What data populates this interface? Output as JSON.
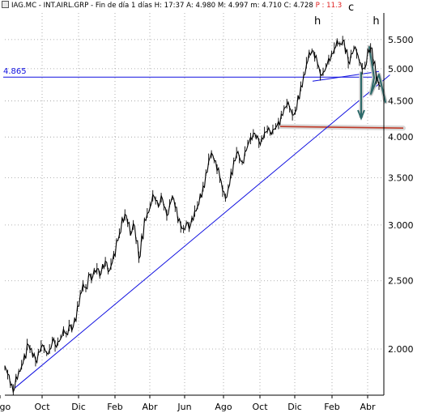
{
  "header": {
    "symbol": "IAG.MC - INT.AIRL.GRP",
    "period": "Fin de día 1 días",
    "high": "H: 17:37",
    "open": "A: 4.980",
    "max": "M: 4.997",
    "min": "m: 4.710",
    "close": "C: 4.728",
    "pchange": "P : 11.3"
  },
  "chart_data": {
    "type": "line",
    "title": "IAG.MC - INT.AIRL.GRP",
    "xlabel": "",
    "ylabel": "",
    "ylim": [
      1.72,
      6.0
    ],
    "log_scale": true,
    "grid": true,
    "x_tick_labels": [
      "Ago",
      "Oct",
      "Dic",
      "Feb",
      "Abr",
      "Jun",
      "Ago",
      "Oct",
      "Dic",
      "Feb",
      "Abr"
    ],
    "y_tick_labels": [
      "5.500",
      "5.000",
      "4.500",
      "4.000",
      "3.500",
      "3.000",
      "2.500",
      "2.000"
    ],
    "y_tick_values": [
      5.5,
      5.0,
      4.5,
      4.0,
      3.5,
      3.0,
      2.5,
      2.0
    ],
    "series": [
      {
        "values": [
          1.88,
          1.84,
          1.78,
          1.75,
          1.82,
          1.86,
          1.9,
          1.95,
          2.03,
          2.0,
          1.96,
          1.92,
          1.98,
          2.02,
          2.0,
          1.97,
          2.0,
          2.06,
          2.02,
          2.05,
          2.08,
          2.12,
          2.1,
          2.16,
          2.14,
          2.2,
          2.3,
          2.4,
          2.46,
          2.44,
          2.55,
          2.52,
          2.58,
          2.6,
          2.55,
          2.62,
          2.66,
          2.58,
          2.64,
          2.72,
          2.85,
          2.92,
          3.05,
          3.1,
          3.02,
          2.92,
          3.0,
          2.85,
          2.7,
          2.88,
          3.05,
          3.12,
          3.2,
          3.3,
          3.25,
          3.2,
          3.28,
          3.18,
          3.1,
          3.22,
          3.28,
          3.18,
          3.05,
          2.98,
          2.96,
          3.02,
          2.98,
          3.06,
          3.14,
          3.2,
          3.3,
          3.4,
          3.56,
          3.72,
          3.78,
          3.7,
          3.6,
          3.48,
          3.35,
          3.28,
          3.4,
          3.55,
          3.7,
          3.8,
          3.72,
          3.68,
          3.82,
          3.92,
          3.98,
          4.05,
          4.0,
          3.92,
          3.98,
          4.06,
          4.1,
          4.05,
          4.1,
          4.14,
          4.18,
          4.3,
          4.4,
          4.46,
          4.38,
          4.3,
          4.36,
          4.55,
          4.72,
          4.9,
          5.1,
          5.25,
          5.3,
          5.2,
          5.05,
          4.9,
          4.95,
          5.05,
          5.15,
          5.25,
          5.35,
          5.45,
          5.42,
          5.48,
          5.3,
          5.1,
          5.25,
          5.35,
          5.25,
          5.1,
          5.0,
          5.05,
          5.3,
          5.35,
          5.1,
          4.85,
          4.728
        ]
      }
    ],
    "annotations": [
      {
        "type": "text",
        "text": "h",
        "x_index": 112,
        "y": 5.78
      },
      {
        "type": "text",
        "text": "c",
        "x_index": 124,
        "y": 6.05
      },
      {
        "type": "text",
        "text": "h",
        "x_index": 133,
        "y": 5.78
      },
      {
        "type": "hline",
        "label": "4.865",
        "y": 4.865,
        "color": "#1010e0"
      },
      {
        "type": "hline",
        "y": 4.14,
        "color": "#c03a28"
      },
      {
        "type": "trendline",
        "from": [
          1.76,
          0
        ],
        "to": [
          4.9,
          135
        ],
        "color": "#1010e0"
      },
      {
        "type": "neckline",
        "from": [
          4.8,
          112
        ],
        "to": [
          4.93,
          136
        ],
        "color": "#1010e0"
      }
    ]
  }
}
